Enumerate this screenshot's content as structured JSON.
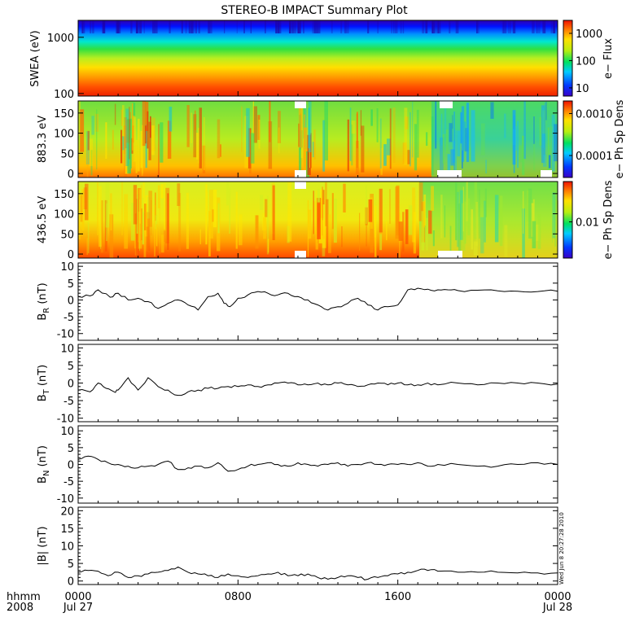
{
  "title": "STEREO-B IMPACT Summary Plot",
  "stamp": "Wed Jun  8 20:27:28 2010",
  "time_axis": {
    "row1_label": "hhmm",
    "row2_label": "2008",
    "ticks": [
      {
        "hours": 0,
        "time": "0000",
        "date": "Jul 27"
      },
      {
        "hours": 8,
        "time": "0800",
        "date": ""
      },
      {
        "hours": 16,
        "time": "1600",
        "date": ""
      },
      {
        "hours": 24,
        "time": "0000",
        "date": "Jul 28"
      }
    ]
  },
  "chart_data": [
    {
      "type": "heatmap",
      "name": "swea",
      "ylabel": "SWEA (eV)",
      "yscale": "log",
      "ylim": [
        90,
        2000
      ],
      "yticks": [
        {
          "v": 100,
          "label": "100"
        },
        {
          "v": 1000,
          "label": "1000"
        }
      ],
      "colorbar": {
        "label": "e− Flux",
        "scale": "log",
        "range": [
          5,
          3000
        ],
        "ticks": [
          {
            "v": 10,
            "label": "10"
          },
          {
            "v": 100,
            "label": "100"
          },
          {
            "v": 1000,
            "label": "1000"
          }
        ]
      },
      "description_levels": "flux high at low energy (red near 100 eV), falling to blue near 1500 eV"
    },
    {
      "type": "heatmap",
      "name": "pad883",
      "ylabel": "883.3 eV",
      "ylim": [
        -10,
        180
      ],
      "yticks": [
        {
          "v": 0,
          "label": "0"
        },
        {
          "v": 50,
          "label": "50"
        },
        {
          "v": 100,
          "label": "100"
        },
        {
          "v": 150,
          "label": "150"
        }
      ],
      "colorbar": {
        "label": "e− Ph Sp Dens",
        "scale": "log",
        "range": [
          3e-05,
          0.002
        ],
        "ticks": [
          {
            "v": 0.0001,
            "label": "0.0001"
          },
          {
            "v": 0.001,
            "label": "0.0010"
          }
        ]
      }
    },
    {
      "type": "heatmap",
      "name": "pad436",
      "ylabel": "436.5 eV",
      "ylim": [
        -10,
        180
      ],
      "yticks": [
        {
          "v": 0,
          "label": "0"
        },
        {
          "v": 50,
          "label": "50"
        },
        {
          "v": 100,
          "label": "100"
        },
        {
          "v": 150,
          "label": "150"
        }
      ],
      "colorbar": {
        "label": "e− Ph Sp Dens",
        "scale": "log",
        "range": [
          0.002,
          0.06
        ],
        "ticks": [
          {
            "v": 0.01,
            "label": "0.01"
          }
        ]
      }
    },
    {
      "type": "line",
      "name": "br",
      "ylabel_main": "B",
      "ylabel_sub": "R",
      "ylabel_unit": " (nT)",
      "ylim": [
        -12,
        11
      ],
      "yticks": [
        -10,
        -5,
        0,
        5,
        10
      ],
      "x_hours": [
        0,
        0.6,
        1,
        1.6,
        2,
        2.5,
        3,
        3.5,
        4,
        4.5,
        5,
        5.5,
        6,
        6.5,
        7,
        7.3,
        7.6,
        8,
        8.5,
        9,
        9.5,
        10,
        10.5,
        11,
        11.5,
        12,
        12.5,
        13,
        13.5,
        14,
        14.5,
        15,
        15.5,
        16,
        16.5,
        17,
        17.5,
        18,
        18.5,
        19,
        20,
        21,
        22,
        23,
        24
      ],
      "y": [
        1.0,
        1.2,
        3.0,
        0.8,
        2.0,
        0.0,
        0.5,
        -0.5,
        -2.5,
        -1.0,
        0.0,
        -1.5,
        -3.0,
        1.0,
        2.0,
        -1.0,
        -2.0,
        0.5,
        1.5,
        2.5,
        2.0,
        1.5,
        2.0,
        1.0,
        0.0,
        -1.5,
        -3.0,
        -2.0,
        -1.0,
        0.5,
        -1.5,
        -3.0,
        -2.0,
        -1.5,
        3.0,
        3.5,
        3.2,
        3.0,
        3.0,
        2.8,
        2.9,
        2.7,
        2.6,
        2.5,
        2.6
      ]
    },
    {
      "type": "line",
      "name": "bt",
      "ylabel_main": "B",
      "ylabel_sub": "T",
      "ylabel_unit": " (nT)",
      "ylim": [
        -11,
        11
      ],
      "yticks": [
        -10,
        -5,
        0,
        5,
        10
      ],
      "x_hours": [
        0,
        0.6,
        1,
        1.4,
        1.8,
        2,
        2.5,
        3,
        3.5,
        4,
        4.5,
        5,
        5.5,
        6,
        6.5,
        7,
        7.5,
        8,
        8.5,
        9,
        9.5,
        10,
        10.5,
        11,
        11.5,
        12,
        12.5,
        13,
        13.5,
        14,
        14.5,
        15,
        15.5,
        16,
        16.5,
        17,
        17.5,
        18,
        19,
        20,
        21,
        22,
        23,
        24
      ],
      "y": [
        -2.0,
        -2.5,
        0.0,
        -1.5,
        -2.5,
        -2.0,
        1.5,
        -2.0,
        1.5,
        -1.0,
        -2.0,
        -3.5,
        -2.5,
        -2.0,
        -1.5,
        -1.5,
        -1.0,
        -1.0,
        -0.5,
        -1.0,
        -0.5,
        0.0,
        0.0,
        -0.5,
        -0.5,
        0.0,
        -0.5,
        0.0,
        -0.5,
        -1.0,
        -0.5,
        0.0,
        -0.5,
        0.0,
        -0.5,
        -0.5,
        0.0,
        -0.5,
        0.0,
        -0.5,
        0.0,
        0.0,
        0.0,
        -0.3
      ]
    },
    {
      "type": "line",
      "name": "bn",
      "ylabel_main": "B",
      "ylabel_sub": "N",
      "ylabel_unit": " (nT)",
      "ylim": [
        -11.5,
        11.5
      ],
      "yticks": [
        -10,
        -5,
        0,
        5,
        10
      ],
      "x_hours": [
        0,
        0.5,
        1,
        1.5,
        2,
        2.5,
        3,
        3.5,
        4,
        4.5,
        5,
        5.5,
        6,
        6.5,
        7,
        7.5,
        8,
        8.5,
        9,
        9.5,
        10,
        10.5,
        11,
        11.5,
        12,
        12.5,
        13,
        13.5,
        14,
        14.5,
        15,
        15.5,
        16,
        16.5,
        17,
        17.5,
        18,
        19,
        20,
        21,
        22,
        23,
        24
      ],
      "y": [
        1.5,
        2.5,
        1.5,
        0.5,
        0.0,
        -0.5,
        -1.0,
        -0.5,
        0.0,
        1.0,
        -1.5,
        -1.0,
        -0.5,
        -1.0,
        0.5,
        -2.0,
        -1.5,
        -0.5,
        0.0,
        0.5,
        0.0,
        -0.5,
        0.5,
        0.0,
        -0.5,
        0.0,
        0.5,
        -0.5,
        0.0,
        0.5,
        0.0,
        0.0,
        0.0,
        0.0,
        0.5,
        -0.5,
        0.0,
        0.0,
        -0.5,
        -0.5,
        0.0,
        0.5,
        0.0
      ]
    },
    {
      "type": "line",
      "name": "bmag",
      "ylabel_main": "|B| (nT)",
      "ylabel_sub": "",
      "ylabel_unit": "",
      "ylim": [
        -1,
        21
      ],
      "yticks": [
        0,
        5,
        10,
        15,
        20
      ],
      "x_hours": [
        0,
        0.5,
        1,
        1.5,
        2,
        2.5,
        3,
        3.5,
        4,
        4.5,
        5,
        5.5,
        6,
        6.5,
        7,
        7.5,
        8,
        8.5,
        9,
        9.5,
        10,
        10.5,
        11,
        11.5,
        12,
        12.5,
        13,
        13.5,
        14,
        14.5,
        15,
        15.5,
        16,
        16.5,
        17,
        17.5,
        18,
        19,
        20,
        21,
        22,
        23,
        24
      ],
      "y": [
        2.5,
        3.0,
        2.8,
        1.5,
        2.5,
        1.0,
        1.5,
        2.0,
        2.5,
        3.0,
        4.0,
        2.5,
        2.0,
        1.5,
        1.0,
        2.0,
        1.5,
        1.0,
        1.5,
        2.0,
        2.5,
        1.5,
        1.5,
        2.0,
        1.0,
        0.5,
        1.0,
        1.5,
        1.0,
        0.5,
        1.0,
        1.5,
        2.0,
        2.5,
        3.0,
        3.0,
        2.8,
        2.5,
        2.5,
        2.5,
        2.3,
        2.3,
        2.3
      ]
    }
  ]
}
